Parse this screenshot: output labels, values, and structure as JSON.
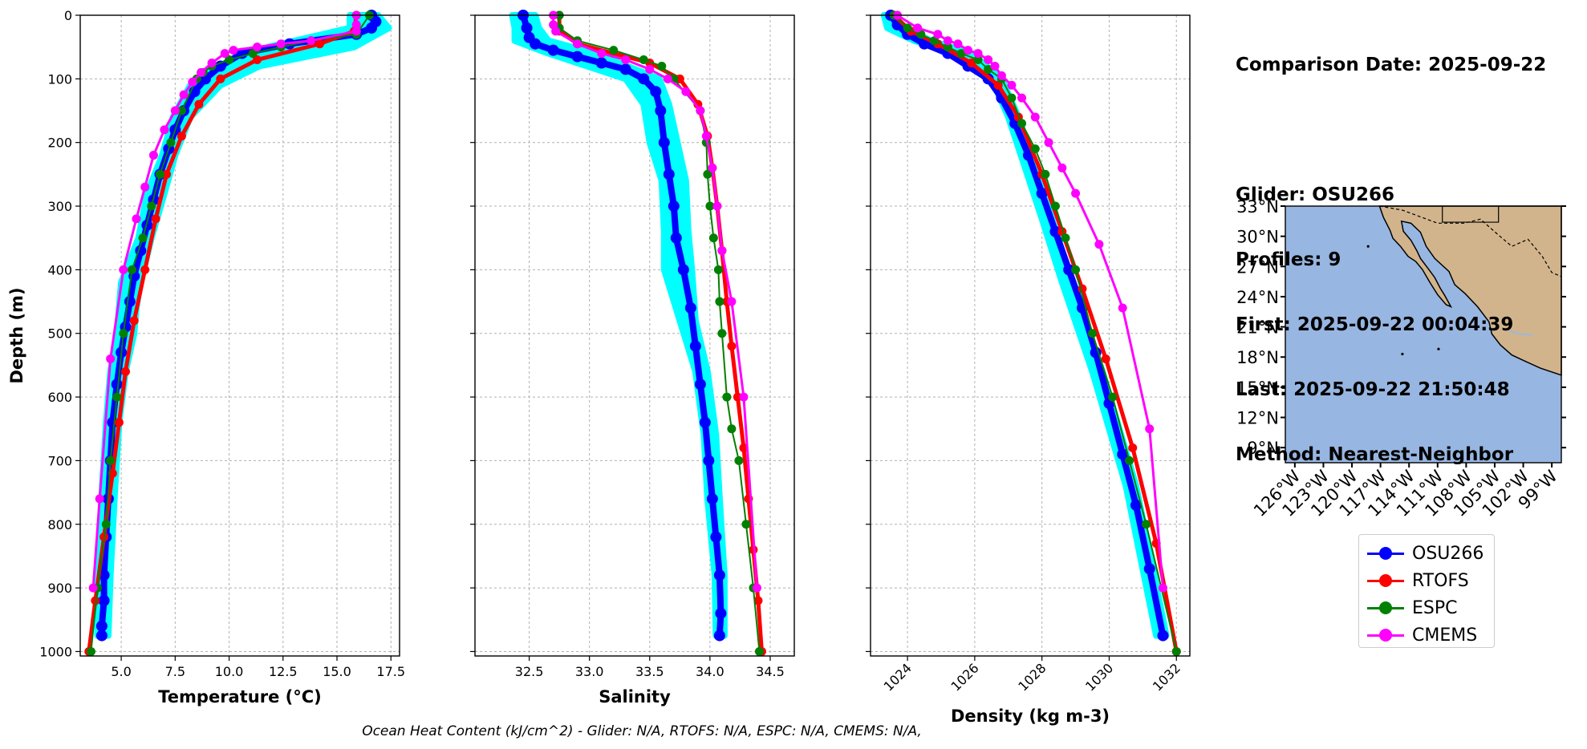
{
  "colors": {
    "glider": "#0000ff",
    "glider_band": "#00ffff",
    "rtofs": "#ff0000",
    "espc": "#008000",
    "cmems": "#ff00ff",
    "ocean": "#97b6e1",
    "land": "#d2b48c"
  },
  "info": {
    "comparison_date": "Comparison Date: 2025-09-22",
    "glider": "Glider: OSU266",
    "profiles": "Profiles: 9",
    "first": "First: 2025-09-22 00:04:39",
    "last": "Last: 2025-09-22 21:50:48",
    "method": "Method: Nearest-Neighbor"
  },
  "footer": "Ocean Heat Content (kJ/cm^2) - Glider: N/A,  RTOFS: N/A,  ESPC: N/A,  CMEMS: N/A,",
  "legend": [
    {
      "name": "OSU266",
      "color_key": "glider"
    },
    {
      "name": "RTOFS",
      "color_key": "rtofs"
    },
    {
      "name": "ESPC",
      "color_key": "espc"
    },
    {
      "name": "CMEMS",
      "color_key": "cmems"
    }
  ],
  "map": {
    "lat_labels": [
      "33°N",
      "30°N",
      "27°N",
      "24°N",
      "21°N",
      "18°N",
      "15°N",
      "12°N",
      "9°N"
    ],
    "lon_labels": [
      "126°W",
      "123°W",
      "120°W",
      "117°W",
      "114°W",
      "111°W",
      "108°W",
      "105°W",
      "102°W",
      "99°W"
    ],
    "lat_range": [
      7.5,
      33
    ],
    "lon_range": [
      -127,
      -98
    ]
  },
  "chart_data": [
    {
      "type": "line",
      "id": "temperature",
      "xlabel": "Temperature (°C)",
      "ylabel": "Depth (m)",
      "xlim": [
        3.1,
        17.9
      ],
      "ylim": [
        1007,
        0
      ],
      "xticks": [
        5.0,
        7.5,
        10.0,
        12.5,
        15.0,
        17.5
      ],
      "xtick_labels": [
        "5.0",
        "7.5",
        "10.0",
        "12.5",
        "15.0",
        "17.5"
      ],
      "yticks": [
        0,
        100,
        200,
        300,
        400,
        500,
        600,
        700,
        800,
        900,
        1000
      ],
      "ytick_labels": [
        "0",
        "100",
        "200",
        "300",
        "400",
        "500",
        "600",
        "700",
        "800",
        "900",
        "1000"
      ],
      "grid": true,
      "series": [
        {
          "name": "OSU266",
          "kind": "glider",
          "band": [
            [
              15.6,
              16.9
            ],
            [
              15.6,
              17.4
            ],
            [
              11.8,
              15.8
            ],
            [
              9.5,
              11.4
            ],
            [
              8.2,
              9.6
            ],
            [
              7.4,
              8.2
            ],
            [
              6.9,
              7.5
            ],
            [
              6.2,
              7.0
            ],
            [
              5.8,
              6.4
            ],
            [
              5.0,
              5.9
            ],
            [
              4.9,
              5.7
            ],
            [
              4.8,
              5.6
            ],
            [
              4.5,
              5.2
            ],
            [
              4.3,
              4.9
            ],
            [
              4.1,
              4.7
            ],
            [
              3.9,
              4.5
            ],
            [
              3.9,
              4.4
            ]
          ],
          "band_depths": [
            0,
            20,
            50,
            80,
            110,
            160,
            220,
            280,
            350,
            420,
            460,
            500,
            560,
            640,
            750,
            880,
            975
          ],
          "x": [
            16.6,
            16.8,
            16.6,
            15.9,
            12.8,
            10.6,
            9.6,
            8.9,
            8.4,
            7.9,
            7.5,
            7.2,
            6.8,
            6.5,
            6.2,
            5.9,
            5.6,
            5.4,
            5.2,
            5.0,
            4.8,
            4.6,
            4.5,
            4.4,
            4.3,
            4.2,
            4.2,
            4.1,
            4.1
          ],
          "depths": [
            0,
            10,
            20,
            30,
            45,
            60,
            80,
            100,
            120,
            150,
            180,
            210,
            250,
            290,
            330,
            370,
            410,
            450,
            490,
            530,
            580,
            640,
            700,
            760,
            820,
            880,
            920,
            960,
            975
          ]
        },
        {
          "name": "RTOFS",
          "kind": "model",
          "x": [
            15.9,
            15.8,
            14.2,
            11.3,
            9.6,
            8.6,
            7.8,
            7.1,
            6.6,
            6.1,
            5.6,
            5.2,
            4.9,
            4.6,
            4.2,
            3.8,
            3.5
          ],
          "depths": [
            0,
            25,
            45,
            70,
            100,
            140,
            190,
            250,
            320,
            400,
            480,
            560,
            640,
            720,
            820,
            920,
            1000
          ]
        },
        {
          "name": "ESPC",
          "kind": "model",
          "x": [
            16.5,
            15.9,
            13.8,
            12.4,
            11.1,
            10.0,
            9.2,
            8.8,
            8.5,
            7.8,
            7.3,
            6.8,
            6.4,
            6.0,
            5.5,
            5.1,
            4.8,
            4.5,
            4.3,
            3.9,
            3.6
          ],
          "depths": [
            0,
            30,
            40,
            50,
            60,
            70,
            80,
            90,
            100,
            150,
            200,
            250,
            300,
            350,
            400,
            500,
            600,
            700,
            800,
            900,
            1000
          ]
        },
        {
          "name": "CMEMS",
          "kind": "model",
          "x": [
            15.9,
            15.9,
            15.9,
            13.8,
            12.4,
            11.3,
            10.2,
            9.8,
            9.2,
            8.7,
            8.3,
            7.9,
            7.5,
            7.0,
            6.5,
            6.1,
            5.7,
            5.1,
            4.5,
            4.0,
            3.7
          ],
          "depths": [
            0,
            15,
            25,
            40,
            45,
            50,
            55,
            60,
            75,
            90,
            105,
            125,
            150,
            180,
            220,
            270,
            320,
            400,
            540,
            760,
            900
          ]
        }
      ]
    },
    {
      "type": "line",
      "id": "salinity",
      "xlabel": "Salinity",
      "xlim": [
        32.05,
        34.7
      ],
      "ylim": [
        1007,
        0
      ],
      "xticks": [
        32.5,
        33.0,
        33.5,
        34.0,
        34.5
      ],
      "xtick_labels": [
        "32.5",
        "33.0",
        "33.5",
        "34.0",
        "34.5"
      ],
      "grid": true,
      "series": [
        {
          "name": "OSU266",
          "kind": "glider",
          "band": [
            [
              32.36,
              32.55
            ],
            [
              32.38,
              32.58
            ],
            [
              32.38,
              32.66
            ],
            [
              32.66,
              33.05
            ],
            [
              33.3,
              33.58
            ],
            [
              33.45,
              33.66
            ],
            [
              33.5,
              33.73
            ],
            [
              33.6,
              33.8
            ],
            [
              33.62,
              33.82
            ],
            [
              33.62,
              33.85
            ],
            [
              33.75,
              33.88
            ],
            [
              33.88,
              33.98
            ],
            [
              33.95,
              34.05
            ],
            [
              33.98,
              34.08
            ],
            [
              34.04,
              34.12
            ],
            [
              34.05,
              34.12
            ]
          ],
          "band_depths": [
            0,
            20,
            40,
            60,
            100,
            140,
            200,
            260,
            340,
            400,
            480,
            560,
            660,
            760,
            880,
            975
          ],
          "x": [
            32.45,
            32.48,
            32.5,
            32.55,
            32.7,
            32.9,
            33.1,
            33.3,
            33.45,
            33.55,
            33.59,
            33.62,
            33.66,
            33.7,
            33.72,
            33.78,
            33.84,
            33.88,
            33.92,
            33.96,
            33.99,
            34.02,
            34.05,
            34.08,
            34.09,
            34.08
          ],
          "depths": [
            0,
            20,
            35,
            45,
            55,
            65,
            75,
            85,
            100,
            120,
            150,
            200,
            250,
            300,
            350,
            400,
            460,
            520,
            580,
            640,
            700,
            760,
            820,
            880,
            940,
            975
          ]
        },
        {
          "name": "RTOFS",
          "kind": "model",
          "x": [
            32.75,
            32.75,
            32.9,
            33.2,
            33.5,
            33.75,
            33.9,
            33.98,
            34.02,
            34.06,
            34.1,
            34.14,
            34.18,
            34.23,
            34.28,
            34.32,
            34.36,
            34.4,
            34.43
          ],
          "depths": [
            0,
            25,
            45,
            60,
            75,
            100,
            140,
            190,
            240,
            300,
            370,
            450,
            520,
            600,
            680,
            760,
            840,
            920,
            1000
          ]
        },
        {
          "name": "ESPC",
          "kind": "model",
          "x": [
            32.75,
            32.75,
            32.9,
            33.2,
            33.45,
            33.6,
            33.7,
            33.92,
            33.97,
            33.98,
            34.0,
            34.03,
            34.07,
            34.08,
            34.1,
            34.14,
            34.18,
            34.24,
            34.3,
            34.36,
            34.41
          ],
          "depths": [
            0,
            20,
            40,
            55,
            70,
            80,
            100,
            150,
            200,
            250,
            300,
            350,
            400,
            450,
            500,
            600,
            650,
            700,
            800,
            900,
            1000
          ]
        },
        {
          "name": "CMEMS",
          "kind": "model",
          "x": [
            32.7,
            32.7,
            32.72,
            32.9,
            33.1,
            33.3,
            33.5,
            33.65,
            33.8,
            33.92,
            33.97,
            34.02,
            34.06,
            34.1,
            34.18,
            34.28,
            34.39
          ],
          "depths": [
            0,
            15,
            25,
            45,
            60,
            70,
            85,
            100,
            120,
            150,
            190,
            240,
            300,
            370,
            450,
            600,
            900
          ]
        }
      ]
    },
    {
      "type": "line",
      "id": "density",
      "xlabel": "Density (kg m-3)",
      "xlim": [
        1022.9,
        1032.4
      ],
      "ylim": [
        1007,
        0
      ],
      "xticks": [
        1024,
        1026,
        1028,
        1030,
        1032
      ],
      "xtick_labels": [
        "1024",
        "1026",
        "1028",
        "1030",
        "1032"
      ],
      "grid": true,
      "series": [
        {
          "name": "OSU266",
          "kind": "glider",
          "band": [
            [
              1023.3,
              1023.6
            ],
            [
              1023.4,
              1023.9
            ],
            [
              1024.2,
              1024.7
            ],
            [
              1025.5,
              1025.9
            ],
            [
              1026.5,
              1026.8
            ],
            [
              1027.0,
              1027.3
            ],
            [
              1027.5,
              1027.8
            ],
            [
              1028.0,
              1028.3
            ],
            [
              1028.6,
              1028.9
            ],
            [
              1029.5,
              1029.8
            ],
            [
              1030.5,
              1030.8
            ],
            [
              1031.4,
              1031.7
            ]
          ],
          "band_depths": [
            0,
            20,
            40,
            60,
            100,
            160,
            240,
            320,
            420,
            560,
            740,
            975
          ],
          "x": [
            1023.5,
            1023.7,
            1024.0,
            1024.5,
            1025.2,
            1025.8,
            1026.4,
            1026.8,
            1027.2,
            1027.6,
            1028.0,
            1028.4,
            1028.8,
            1029.2,
            1029.6,
            1030.0,
            1030.4,
            1030.8,
            1031.2,
            1031.6
          ],
          "depths": [
            0,
            15,
            30,
            45,
            60,
            80,
            100,
            130,
            170,
            220,
            280,
            340,
            400,
            460,
            530,
            610,
            690,
            770,
            870,
            975
          ]
        },
        {
          "name": "RTOFS",
          "kind": "model",
          "x": [
            1023.6,
            1024.1,
            1024.9,
            1025.9,
            1026.7,
            1027.3,
            1028.0,
            1028.6,
            1029.2,
            1029.9,
            1030.7,
            1031.4,
            1032.0
          ],
          "depths": [
            0,
            25,
            45,
            75,
            110,
            160,
            250,
            340,
            430,
            540,
            680,
            830,
            1000
          ]
        },
        {
          "name": "ESPC",
          "kind": "model",
          "x": [
            1023.6,
            1024.0,
            1024.4,
            1024.8,
            1025.2,
            1025.6,
            1026.1,
            1026.4,
            1026.8,
            1027.1,
            1027.4,
            1027.8,
            1028.1,
            1028.4,
            1028.7,
            1029.0,
            1029.5,
            1030.1,
            1030.6,
            1031.1,
            1032.0
          ],
          "depths": [
            0,
            20,
            30,
            40,
            50,
            60,
            70,
            85,
            100,
            130,
            170,
            210,
            250,
            300,
            350,
            400,
            500,
            600,
            700,
            800,
            1000
          ]
        },
        {
          "name": "CMEMS",
          "kind": "model",
          "x": [
            1023.7,
            1024.3,
            1024.9,
            1025.2,
            1025.5,
            1025.8,
            1026.1,
            1026.4,
            1026.6,
            1026.8,
            1027.1,
            1027.4,
            1027.8,
            1028.2,
            1028.6,
            1029.0,
            1029.7,
            1030.4,
            1031.2,
            1031.6
          ],
          "depths": [
            0,
            20,
            30,
            40,
            45,
            55,
            60,
            70,
            80,
            95,
            110,
            130,
            160,
            200,
            240,
            280,
            360,
            460,
            650,
            900
          ]
        }
      ]
    }
  ]
}
